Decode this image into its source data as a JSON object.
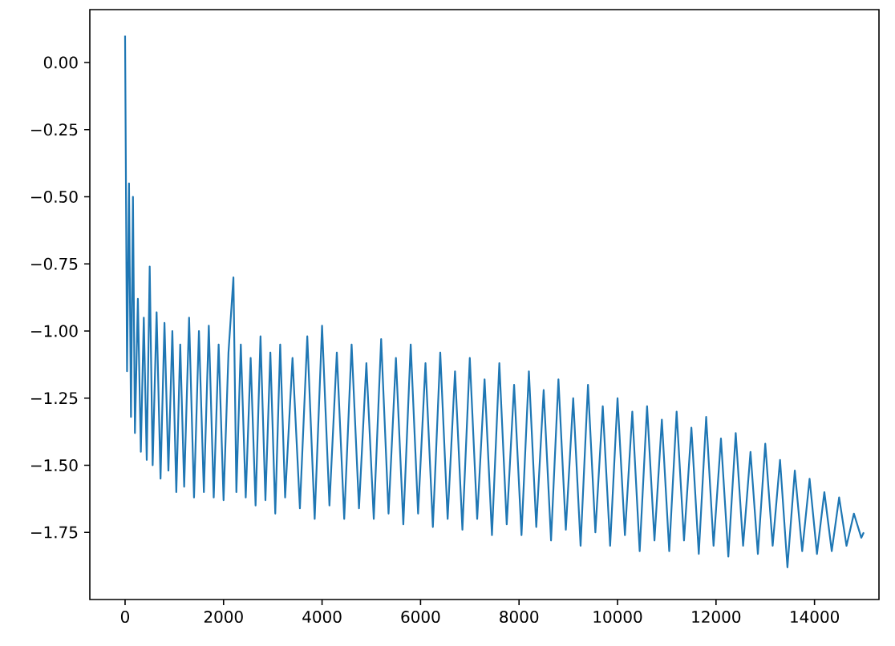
{
  "chart_data": {
    "type": "line",
    "xlim": [
      -716,
      15309
    ],
    "ylim": [
      -2.0,
      0.197
    ],
    "xticks": [
      0,
      2000,
      4000,
      6000,
      8000,
      10000,
      12000,
      14000
    ],
    "yticks": [
      {
        "value": -1.75,
        "label": "−1.75"
      },
      {
        "value": -1.5,
        "label": "−1.50"
      },
      {
        "value": -1.25,
        "label": "−1.25"
      },
      {
        "value": -1.0,
        "label": "−1.00"
      },
      {
        "value": -0.75,
        "label": "−0.75"
      },
      {
        "value": -0.5,
        "label": "−0.50"
      },
      {
        "value": -0.25,
        "label": "−0.25"
      },
      {
        "value": 0.0,
        "label": "0.00"
      }
    ],
    "series": [
      {
        "color": "#1f77b4",
        "x": [
          0,
          40,
          80,
          120,
          160,
          200,
          260,
          320,
          380,
          440,
          500,
          560,
          640,
          720,
          800,
          880,
          960,
          1040,
          1120,
          1200,
          1300,
          1400,
          1500,
          1600,
          1700,
          1800,
          1900,
          2000,
          2100,
          2200,
          2260,
          2350,
          2450,
          2550,
          2650,
          2750,
          2850,
          2950,
          3050,
          3150,
          3250,
          3400,
          3550,
          3700,
          3850,
          4000,
          4150,
          4300,
          4450,
          4600,
          4750,
          4900,
          5050,
          5200,
          5350,
          5500,
          5650,
          5800,
          5950,
          6100,
          6250,
          6400,
          6550,
          6700,
          6850,
          7000,
          7150,
          7300,
          7450,
          7600,
          7750,
          7900,
          8050,
          8200,
          8350,
          8500,
          8650,
          8800,
          8950,
          9100,
          9250,
          9400,
          9550,
          9700,
          9850,
          10000,
          10150,
          10300,
          10450,
          10600,
          10750,
          10900,
          11050,
          11200,
          11350,
          11500,
          11650,
          11800,
          11950,
          12100,
          12250,
          12400,
          12550,
          12700,
          12850,
          13000,
          13150,
          13300,
          13450,
          13600,
          13750,
          13900,
          14050,
          14200,
          14350,
          14500,
          14650,
          14800,
          14950,
          15000
        ],
        "values": [
          0.1,
          -1.15,
          -0.45,
          -1.32,
          -0.5,
          -1.38,
          -0.88,
          -1.45,
          -0.95,
          -1.48,
          -0.76,
          -1.5,
          -0.93,
          -1.55,
          -0.97,
          -1.52,
          -1.0,
          -1.6,
          -1.05,
          -1.58,
          -0.95,
          -1.62,
          -1.0,
          -1.6,
          -0.98,
          -1.62,
          -1.05,
          -1.63,
          -1.08,
          -0.8,
          -1.6,
          -1.05,
          -1.62,
          -1.1,
          -1.65,
          -1.02,
          -1.63,
          -1.08,
          -1.68,
          -1.05,
          -1.62,
          -1.1,
          -1.66,
          -1.02,
          -1.7,
          -0.98,
          -1.65,
          -1.08,
          -1.7,
          -1.05,
          -1.66,
          -1.12,
          -1.7,
          -1.03,
          -1.68,
          -1.1,
          -1.72,
          -1.05,
          -1.68,
          -1.12,
          -1.73,
          -1.08,
          -1.7,
          -1.15,
          -1.74,
          -1.1,
          -1.7,
          -1.18,
          -1.76,
          -1.12,
          -1.72,
          -1.2,
          -1.76,
          -1.15,
          -1.73,
          -1.22,
          -1.78,
          -1.18,
          -1.74,
          -1.25,
          -1.8,
          -1.2,
          -1.75,
          -1.28,
          -1.8,
          -1.25,
          -1.76,
          -1.3,
          -1.82,
          -1.28,
          -1.78,
          -1.33,
          -1.82,
          -1.3,
          -1.78,
          -1.36,
          -1.83,
          -1.32,
          -1.8,
          -1.4,
          -1.84,
          -1.38,
          -1.8,
          -1.45,
          -1.83,
          -1.42,
          -1.8,
          -1.48,
          -1.88,
          -1.52,
          -1.82,
          -1.55,
          -1.83,
          -1.6,
          -1.82,
          -1.62,
          -1.8,
          -1.68,
          -1.77,
          -1.75
        ]
      }
    ]
  }
}
